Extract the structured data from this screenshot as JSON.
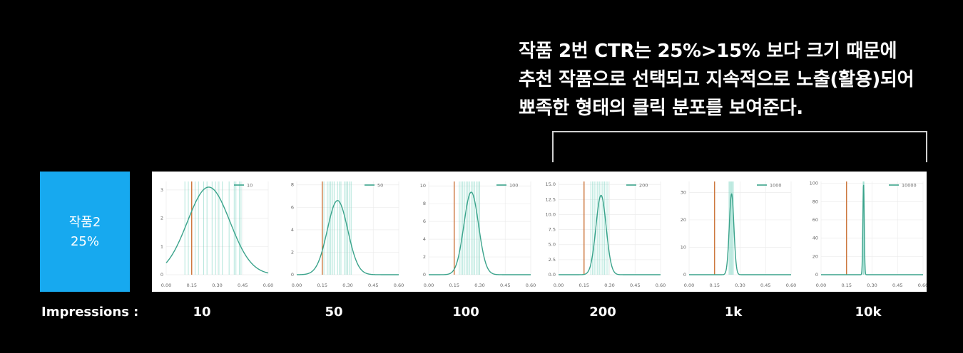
{
  "caption": {
    "lines": [
      "작품 2번 CTR는 25%>15% 보다 크기 때문에",
      "추천 작품으로 선택되고 지속적으로 노출(활용)되어",
      "뾰족한 형태의 클릭 분포를 보여준다."
    ]
  },
  "item": {
    "name": "작품2",
    "ctr": "25%"
  },
  "impressions": {
    "label": "Impressions :",
    "values": [
      "10",
      "50",
      "100",
      "200",
      "1k",
      "10k"
    ]
  },
  "colors": {
    "curve": "#3aa38b",
    "threshold": "#c8692a",
    "samples": "#7fd6c3",
    "accent": "#17a9ef"
  },
  "chart_data": [
    {
      "type": "line",
      "series": [
        {
          "name": "10"
        }
      ],
      "xlim": [
        0,
        0.6
      ],
      "ylim": [
        0,
        3.3
      ],
      "xticks": [
        "0.00",
        "0.15",
        "0.30",
        "0.45",
        "0.60"
      ],
      "yticks": [
        "0",
        "1",
        "2",
        "3"
      ],
      "peak_x": 0.25,
      "peak_y": 3.1,
      "sigma": 0.125,
      "threshold_x": 0.15,
      "samples": [
        0.11,
        0.13,
        0.17,
        0.19,
        0.22,
        0.24,
        0.27,
        0.29,
        0.31,
        0.33,
        0.37,
        0.4,
        0.41,
        0.43,
        0.44
      ]
    },
    {
      "type": "line",
      "series": [
        {
          "name": "50"
        }
      ],
      "xlim": [
        0,
        0.6
      ],
      "ylim": [
        0,
        8.3
      ],
      "xticks": [
        "0.00",
        "0.15",
        "0.30",
        "0.45",
        "0.60"
      ],
      "yticks": [
        "0",
        "2",
        "4",
        "6",
        "8"
      ],
      "peak_x": 0.24,
      "peak_y": 6.6,
      "sigma": 0.06,
      "threshold_x": 0.15,
      "samples": [
        0.16,
        0.18,
        0.19,
        0.2,
        0.21,
        0.22,
        0.24,
        0.25,
        0.26,
        0.28,
        0.29,
        0.3,
        0.31,
        0.32
      ]
    },
    {
      "type": "line",
      "series": [
        {
          "name": "100"
        }
      ],
      "xlim": [
        0,
        0.6
      ],
      "ylim": [
        0,
        10.5
      ],
      "xticks": [
        "0.00",
        "0.15",
        "0.30",
        "0.45",
        "0.60"
      ],
      "yticks": [
        "0",
        "2",
        "4",
        "6",
        "8",
        "10"
      ],
      "peak_x": 0.25,
      "peak_y": 9.3,
      "sigma": 0.043,
      "threshold_x": 0.15,
      "samples": [
        0.18,
        0.19,
        0.2,
        0.21,
        0.22,
        0.23,
        0.24,
        0.25,
        0.26,
        0.27,
        0.28,
        0.29,
        0.3
      ]
    },
    {
      "type": "line",
      "series": [
        {
          "name": "200"
        }
      ],
      "xlim": [
        0,
        0.6
      ],
      "ylim": [
        0,
        15.5
      ],
      "xticks": [
        "0.00",
        "0.15",
        "0.30",
        "0.45",
        "0.60"
      ],
      "yticks": [
        "0.0",
        "2.5",
        "5.0",
        "7.5",
        "10.0",
        "12.5",
        "15.0"
      ],
      "peak_x": 0.25,
      "peak_y": 13.2,
      "sigma": 0.03,
      "threshold_x": 0.15,
      "samples": [
        0.19,
        0.2,
        0.21,
        0.22,
        0.23,
        0.24,
        0.25,
        0.26,
        0.27,
        0.28,
        0.29
      ]
    },
    {
      "type": "line",
      "series": [
        {
          "name": "1000"
        }
      ],
      "xlim": [
        0,
        0.6
      ],
      "ylim": [
        0,
        34
      ],
      "xticks": [
        "0.00",
        "0.15",
        "0.30",
        "0.45",
        "0.60"
      ],
      "yticks": [
        "0",
        "10",
        "20",
        "30"
      ],
      "peak_x": 0.25,
      "peak_y": 29.5,
      "sigma": 0.0135,
      "threshold_x": 0.15,
      "samples": [
        0.235,
        0.24,
        0.245,
        0.25,
        0.255,
        0.26
      ]
    },
    {
      "type": "line",
      "series": [
        {
          "name": "10000"
        }
      ],
      "xlim": [
        0,
        0.6
      ],
      "ylim": [
        0,
        102
      ],
      "xticks": [
        "0.00",
        "0.15",
        "0.30",
        "0.45",
        "0.60"
      ],
      "yticks": [
        "0",
        "20",
        "40",
        "60",
        "80",
        "100"
      ],
      "peak_x": 0.25,
      "peak_y": 99,
      "sigma": 0.004,
      "threshold_x": 0.15,
      "samples": [
        0.247,
        0.25,
        0.253
      ]
    }
  ]
}
